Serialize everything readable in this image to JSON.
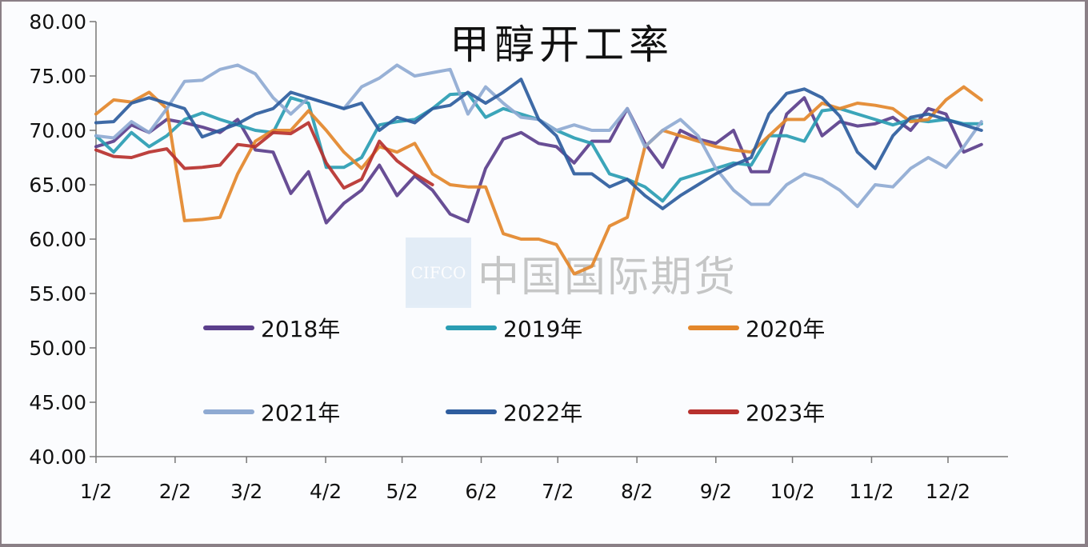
{
  "chart_data": {
    "type": "line",
    "title": "甲醇开工率",
    "xlabel": "",
    "ylabel": "",
    "ylim": [
      40,
      80
    ],
    "yticks": [
      "80.00",
      "75.00",
      "70.00",
      "65.00",
      "60.00",
      "55.00",
      "50.00",
      "45.00",
      "40.00"
    ],
    "x_tick_labels": [
      "1/2",
      "2/2",
      "3/2",
      "4/2",
      "5/2",
      "6/2",
      "7/2",
      "8/2",
      "9/2",
      "10/2",
      "11/2",
      "12/2"
    ],
    "grid": false,
    "legend_position": "inside-center",
    "x_note": "weekly points, week 1 = 1/2",
    "series": [
      {
        "name": "2018年",
        "color": "#5b3f8c",
        "values": [
          68.5,
          69.0,
          70.5,
          69.8,
          71.0,
          70.7,
          70.3,
          69.8,
          71.0,
          68.2,
          68.0,
          64.2,
          66.2,
          61.5,
          63.3,
          64.5,
          66.8,
          64.0,
          65.8,
          64.5,
          62.3,
          61.6,
          66.5,
          69.2,
          69.8,
          68.8,
          68.5,
          67.0,
          69.0,
          69.0,
          72.0,
          68.8,
          66.6,
          70.0,
          69.2,
          68.8,
          70.0,
          66.2,
          66.2,
          71.5,
          73.0,
          69.5,
          70.8,
          70.4,
          70.6,
          71.2,
          70.0,
          72.0,
          71.5,
          68.0,
          68.7
        ]
      },
      {
        "name": "2019年",
        "color": "#2a9db3",
        "values": [
          69.5,
          68.0,
          69.8,
          68.5,
          69.5,
          71.0,
          71.6,
          71.0,
          70.5,
          70.0,
          69.8,
          73.0,
          72.5,
          66.6,
          66.6,
          67.5,
          70.5,
          70.8,
          71.0,
          72.0,
          73.3,
          73.4,
          71.2,
          72.0,
          71.5,
          71.0,
          70.0,
          69.3,
          68.8,
          66.0,
          65.5,
          64.8,
          63.5,
          65.5,
          66.0,
          66.5,
          67.0,
          66.8,
          69.5,
          69.5,
          69.0,
          71.8,
          72.0,
          71.5,
          71.0,
          70.5,
          71.0,
          70.8,
          71.0,
          70.6,
          70.6
        ]
      },
      {
        "name": "2020年",
        "color": "#e3872b",
        "values": [
          71.5,
          72.8,
          72.6,
          73.5,
          72.0,
          61.7,
          61.8,
          62.0,
          66.0,
          69.0,
          70.0,
          70.0,
          71.8,
          70.0,
          68.0,
          66.5,
          68.5,
          68.0,
          68.8,
          66.0,
          65.0,
          64.8,
          64.8,
          60.5,
          60.0,
          60.0,
          59.5,
          56.8,
          57.5,
          61.2,
          62.0,
          68.5,
          70.0,
          69.5,
          69.0,
          68.5,
          68.2,
          68.0,
          69.5,
          71.0,
          71.0,
          72.5,
          72.0,
          72.5,
          72.3,
          72.0,
          70.8,
          71.0,
          72.8,
          74.0,
          72.8
        ]
      },
      {
        "name": "2021年",
        "color": "#8faad2",
        "values": [
          69.5,
          69.3,
          70.8,
          69.8,
          72.0,
          74.5,
          74.6,
          75.6,
          76.0,
          75.2,
          73.0,
          71.5,
          73.0,
          72.5,
          72.0,
          74.0,
          74.8,
          76.0,
          75.0,
          75.3,
          75.6,
          71.5,
          74.0,
          72.5,
          71.2,
          71.0,
          70.0,
          70.5,
          70.0,
          70.0,
          72.0,
          68.5,
          70.0,
          71.0,
          69.5,
          66.5,
          64.5,
          63.2,
          63.2,
          65.0,
          66.0,
          65.5,
          64.5,
          63.0,
          65.0,
          64.8,
          66.5,
          67.5,
          66.6,
          68.5,
          70.8
        ]
      },
      {
        "name": "2022年",
        "color": "#2e5d9e",
        "values": [
          70.7,
          70.8,
          72.5,
          73.0,
          72.5,
          72.0,
          69.4,
          70.0,
          70.6,
          71.5,
          72.0,
          73.5,
          73.0,
          72.5,
          72.0,
          72.5,
          70.0,
          71.2,
          70.7,
          72.0,
          72.3,
          73.5,
          72.5,
          73.5,
          74.7,
          71.0,
          69.5,
          66.0,
          66.0,
          64.8,
          65.5,
          64.0,
          62.8,
          64.0,
          65.0,
          66.0,
          66.8,
          67.5,
          71.5,
          73.4,
          73.8,
          73.0,
          71.3,
          68.0,
          66.5,
          69.5,
          71.2,
          71.5,
          71.0,
          70.5,
          70.0
        ]
      },
      {
        "name": "2023年",
        "color": "#b7312e",
        "values": [
          68.2,
          67.6,
          67.5,
          68.0,
          68.3,
          66.5,
          66.6,
          66.8,
          68.7,
          68.5,
          69.8,
          69.7,
          70.7,
          67.0,
          64.7,
          65.5,
          69.0,
          67.2,
          66.0,
          65.0
        ]
      }
    ]
  },
  "watermark": {
    "logo_text": "CIFCO",
    "text": "中国国际期货"
  }
}
